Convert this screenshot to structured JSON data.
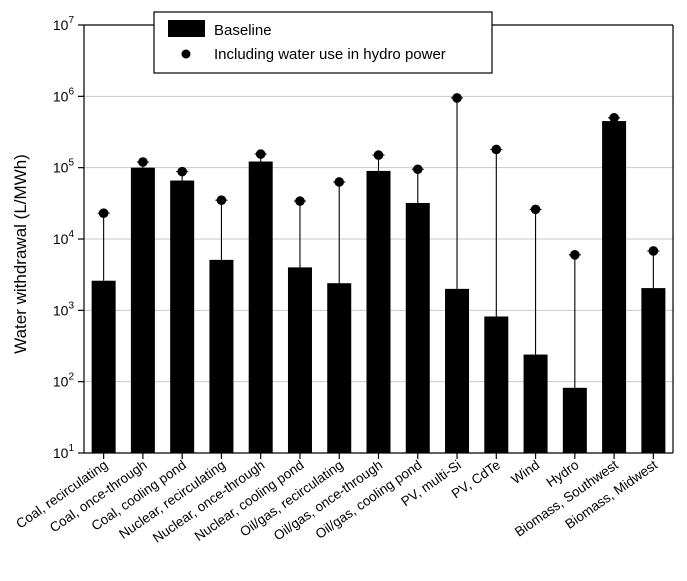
{
  "chart_data": {
    "type": "bar",
    "ylabel": "Water withdrawal (L/MWh)",
    "xlabel": "",
    "yscale": "log",
    "ylim": [
      10,
      10000000
    ],
    "yticks": [
      {
        "value": 10,
        "base": "10",
        "exp": "1"
      },
      {
        "value": 100,
        "base": "10",
        "exp": "2"
      },
      {
        "value": 1000,
        "base": "10",
        "exp": "3"
      },
      {
        "value": 10000,
        "base": "10",
        "exp": "4"
      },
      {
        "value": 100000,
        "base": "10",
        "exp": "5"
      },
      {
        "value": 1000000,
        "base": "10",
        "exp": "6"
      },
      {
        "value": 10000000,
        "base": "10",
        "exp": "7"
      }
    ],
    "grid": true,
    "legend_position": "top-center",
    "categories": [
      "Coal, recirculating",
      "Coal, once-through",
      "Coal, cooling pond",
      "Nuclear, recirculating",
      "Nuclear, once-through",
      "Nuclear, cooling pond",
      "Oil/gas, recirculating",
      "Oil/gas, once-through",
      "Oil/gas, cooling pond",
      "PV, multi-Si",
      "PV, CdTe",
      "Wind",
      "Hydro",
      "Biomass, Southwest",
      "Biomass, Midwest"
    ],
    "series": [
      {
        "name": "Baseline",
        "style": "bar",
        "color": "#000000",
        "values": [
          2600,
          100000,
          66000,
          5100,
          122000,
          4000,
          2400,
          90000,
          32000,
          2000,
          820,
          240,
          82,
          450000,
          2050
        ]
      },
      {
        "name": "Including water use in hydro power",
        "style": "dot",
        "color": "#000000",
        "values": [
          23000,
          120000,
          88000,
          35000,
          155000,
          34000,
          63000,
          150000,
          95000,
          950000,
          180000,
          26000,
          6000,
          500000,
          6800
        ]
      }
    ]
  }
}
